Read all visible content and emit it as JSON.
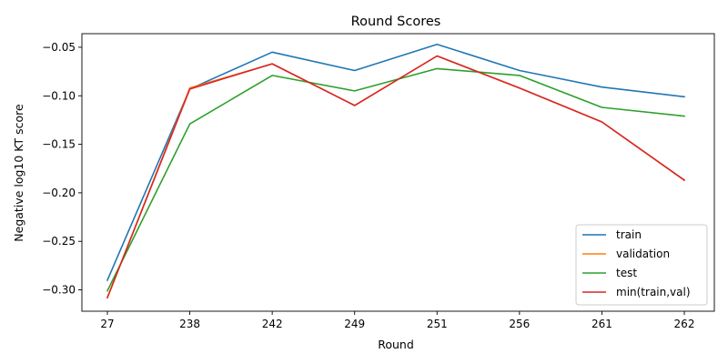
{
  "chart_data": {
    "type": "line",
    "title": "Round Scores",
    "xlabel": "Round",
    "ylabel": "Negative log10 KT score",
    "categories": [
      "27",
      "238",
      "242",
      "249",
      "251",
      "256",
      "261",
      "262"
    ],
    "ylim": [
      -0.322,
      -0.036
    ],
    "yticks": [
      -0.3,
      -0.25,
      -0.2,
      -0.15,
      -0.1,
      -0.05
    ],
    "ytick_labels": [
      "−0.30",
      "−0.25",
      "−0.20",
      "−0.15",
      "−0.10",
      "−0.05"
    ],
    "grid": false,
    "legend_position": "lower-right",
    "series": [
      {
        "name": "train",
        "color": "#1f77b4",
        "values": [
          -0.29,
          -0.093,
          -0.055,
          -0.074,
          -0.047,
          -0.074,
          -0.091,
          -0.101
        ]
      },
      {
        "name": "validation",
        "color": "#ff7f0e",
        "values": [
          -0.308,
          -0.092,
          -0.067,
          -0.11,
          -0.059,
          -0.092,
          -0.127,
          -0.187
        ]
      },
      {
        "name": "test",
        "color": "#2ca02c",
        "values": [
          -0.301,
          -0.129,
          -0.079,
          -0.095,
          -0.072,
          -0.079,
          -0.112,
          -0.121
        ]
      },
      {
        "name": "min(train,val)",
        "color": "#d62728",
        "values": [
          -0.308,
          -0.093,
          -0.067,
          -0.11,
          -0.059,
          -0.092,
          -0.127,
          -0.187
        ]
      }
    ]
  }
}
